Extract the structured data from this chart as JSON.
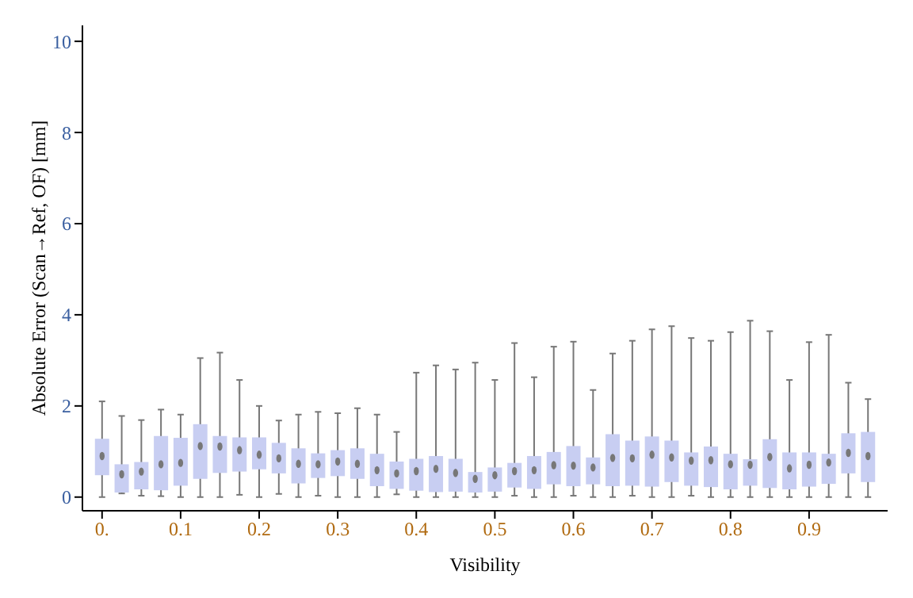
{
  "chart_data": {
    "type": "box",
    "xlabel": "Visibility",
    "ylabel": "Absolute Error (Scan→Ref, OF) [mm]",
    "x": [
      0,
      0.025,
      0.05,
      0.075,
      0.1,
      0.125,
      0.15,
      0.175,
      0.2,
      0.225,
      0.25,
      0.275,
      0.3,
      0.325,
      0.35,
      0.375,
      0.4,
      0.425,
      0.45,
      0.475,
      0.5,
      0.525,
      0.55,
      0.575,
      0.6,
      0.625,
      0.65,
      0.675,
      0.7,
      0.725,
      0.75,
      0.775,
      0.8,
      0.825,
      0.85,
      0.875,
      0.9,
      0.925,
      0.95,
      0.975
    ],
    "xlim": [
      -0.025,
      1.0
    ],
    "xticks": [
      {
        "value": 0,
        "label": "0."
      },
      0.1,
      0.2,
      0.3,
      0.4,
      0.5,
      0.6,
      0.7,
      0.8,
      0.9
    ],
    "ylim": [
      -0.3,
      10.35
    ],
    "yticks": [
      0,
      2,
      4,
      6,
      8,
      10
    ],
    "grid": false,
    "series": [
      {
        "color": "#c8cef2",
        "boxes": [
          {
            "low": 0,
            "q1": 0.48,
            "median": 0.9,
            "q3": 1.28,
            "high": 2.1
          },
          {
            "low": 0.08,
            "q1": 0.1,
            "median": 0.5,
            "q3": 0.72,
            "high": 1.78
          },
          {
            "low": 0.03,
            "q1": 0.17,
            "median": 0.56,
            "q3": 0.77,
            "high": 1.69
          },
          {
            "low": 0.02,
            "q1": 0.15,
            "median": 0.72,
            "q3": 1.34,
            "high": 1.92
          },
          {
            "low": 0,
            "q1": 0.25,
            "median": 0.75,
            "q3": 1.3,
            "high": 1.81
          },
          {
            "low": 0,
            "q1": 0.4,
            "median": 1.12,
            "q3": 1.6,
            "high": 3.05
          },
          {
            "low": 0,
            "q1": 0.53,
            "median": 1.11,
            "q3": 1.34,
            "high": 3.17
          },
          {
            "low": 0.05,
            "q1": 0.56,
            "median": 1.03,
            "q3": 1.31,
            "high": 2.57
          },
          {
            "low": 0,
            "q1": 0.61,
            "median": 0.93,
            "q3": 1.31,
            "high": 2.0
          },
          {
            "low": 0.07,
            "q1": 0.52,
            "median": 0.85,
            "q3": 1.19,
            "high": 1.68
          },
          {
            "low": 0,
            "q1": 0.3,
            "median": 0.73,
            "q3": 1.07,
            "high": 1.81
          },
          {
            "low": 0.03,
            "q1": 0.42,
            "median": 0.72,
            "q3": 0.96,
            "high": 1.87
          },
          {
            "low": 0,
            "q1": 0.46,
            "median": 0.78,
            "q3": 1.03,
            "high": 1.84
          },
          {
            "low": 0,
            "q1": 0.4,
            "median": 0.73,
            "q3": 1.07,
            "high": 1.95
          },
          {
            "low": 0,
            "q1": 0.24,
            "median": 0.59,
            "q3": 0.95,
            "high": 1.81
          },
          {
            "low": 0.06,
            "q1": 0.18,
            "median": 0.52,
            "q3": 0.78,
            "high": 1.43
          },
          {
            "low": 0,
            "q1": 0.14,
            "median": 0.57,
            "q3": 0.84,
            "high": 2.73
          },
          {
            "low": 0,
            "q1": 0.11,
            "median": 0.62,
            "q3": 0.9,
            "high": 2.89
          },
          {
            "low": 0,
            "q1": 0.12,
            "median": 0.53,
            "q3": 0.84,
            "high": 2.8
          },
          {
            "low": 0,
            "q1": 0.1,
            "median": 0.4,
            "q3": 0.55,
            "high": 2.95
          },
          {
            "low": 0,
            "q1": 0.12,
            "median": 0.48,
            "q3": 0.65,
            "high": 2.57
          },
          {
            "low": 0.03,
            "q1": 0.21,
            "median": 0.57,
            "q3": 0.75,
            "high": 3.38
          },
          {
            "low": 0,
            "q1": 0.18,
            "median": 0.59,
            "q3": 0.9,
            "high": 2.63
          },
          {
            "low": 0,
            "q1": 0.28,
            "median": 0.7,
            "q3": 0.99,
            "high": 3.3
          },
          {
            "low": 0.03,
            "q1": 0.24,
            "median": 0.69,
            "q3": 1.12,
            "high": 3.41
          },
          {
            "low": 0,
            "q1": 0.28,
            "median": 0.65,
            "q3": 0.87,
            "high": 2.35
          },
          {
            "low": 0,
            "q1": 0.24,
            "median": 0.86,
            "q3": 1.38,
            "high": 3.15
          },
          {
            "low": 0.03,
            "q1": 0.25,
            "median": 0.85,
            "q3": 1.24,
            "high": 3.43
          },
          {
            "low": 0,
            "q1": 0.23,
            "median": 0.93,
            "q3": 1.33,
            "high": 3.68
          },
          {
            "low": 0,
            "q1": 0.33,
            "median": 0.87,
            "q3": 1.24,
            "high": 3.75
          },
          {
            "low": 0.03,
            "q1": 0.25,
            "median": 0.8,
            "q3": 0.98,
            "high": 3.49
          },
          {
            "low": 0,
            "q1": 0.22,
            "median": 0.81,
            "q3": 1.11,
            "high": 3.43
          },
          {
            "low": 0,
            "q1": 0.17,
            "median": 0.72,
            "q3": 0.95,
            "high": 3.62
          },
          {
            "low": 0,
            "q1": 0.25,
            "median": 0.71,
            "q3": 0.83,
            "high": 3.87
          },
          {
            "low": 0,
            "q1": 0.2,
            "median": 0.88,
            "q3": 1.27,
            "high": 3.64
          },
          {
            "low": 0,
            "q1": 0.17,
            "median": 0.63,
            "q3": 0.98,
            "high": 2.57
          },
          {
            "low": 0,
            "q1": 0.23,
            "median": 0.71,
            "q3": 0.98,
            "high": 3.4
          },
          {
            "low": 0,
            "q1": 0.29,
            "median": 0.76,
            "q3": 0.95,
            "high": 3.56
          },
          {
            "low": 0,
            "q1": 0.52,
            "median": 0.97,
            "q3": 1.4,
            "high": 2.51
          },
          {
            "low": 0,
            "q1": 0.33,
            "median": 0.9,
            "q3": 1.43,
            "high": 2.15
          }
        ]
      }
    ]
  }
}
